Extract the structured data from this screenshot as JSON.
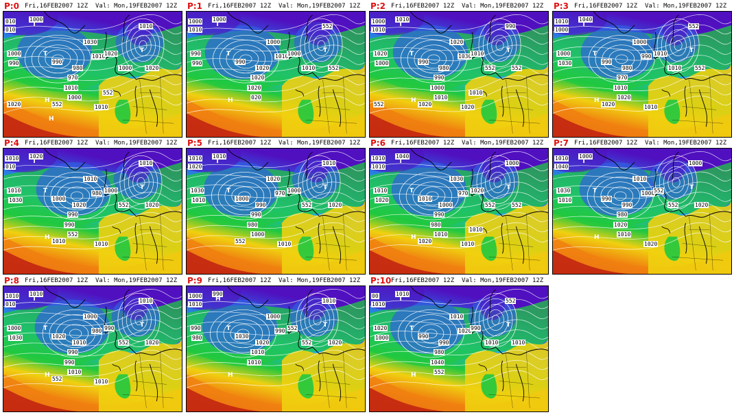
{
  "page": {
    "colors": {
      "background": "#ffffff",
      "panel_id": "#e01010",
      "cold": "#5010c0",
      "blue": "#3060e0",
      "cyan": "#20b0e0",
      "green": "#20c840",
      "yellow": "#f0d010",
      "orange": "#f08010",
      "red": "#c02010",
      "isobar": "#ffffff",
      "coast": "#000000"
    },
    "panels": [
      {
        "id": "P:0",
        "run": "Fri,16FEB2007 12Z",
        "valid": "Val: Mon,19FEB2007 12Z",
        "labels": [
          "010",
          "010",
          "1000",
          "1000",
          "990",
          "990",
          "980",
          "970",
          "1010",
          "1010",
          "1030",
          "1020",
          "1010",
          "1000",
          "1020",
          "1000",
          "1010",
          "552",
          "552",
          "1020"
        ],
        "centers": [
          "T",
          "T",
          "T",
          "H",
          "H"
        ]
      },
      {
        "id": "P:1",
        "run": "Fri,16FEB2007 12Z",
        "valid": "Val: Mon,19FEB2007 12Z",
        "labels": [
          "1000",
          "1010",
          "1000",
          "990",
          "990",
          "990",
          "1020",
          "1020",
          "1020",
          "1010",
          "1000",
          "1000",
          "552",
          "1010",
          "552",
          "020"
        ],
        "centers": [
          "T",
          "T",
          "T",
          "H"
        ]
      },
      {
        "id": "P:2",
        "run": "Fri,16FEB2007 12Z",
        "valid": "Val: Mon,19FEB2007 12Z",
        "labels": [
          "1000",
          "1010",
          "1010",
          "1020",
          "1000",
          "990",
          "980",
          "990",
          "1000",
          "1030",
          "1020",
          "1010",
          "990",
          "552",
          "552",
          "1010",
          "1020",
          "1020",
          "1010",
          "552"
        ],
        "centers": [
          "T",
          "T",
          "T",
          "H"
        ]
      },
      {
        "id": "P:3",
        "run": "Fri,16FEB2007 12Z",
        "valid": "Val: Mon,19FEB2007 12Z",
        "labels": [
          "1010",
          "1000",
          "1040",
          "1000",
          "1030",
          "990",
          "980",
          "970",
          "1010",
          "990",
          "1000",
          "1010",
          "552",
          "1010",
          "552",
          "1020",
          "1010",
          "1020"
        ],
        "centers": [
          "T",
          "T",
          "T",
          "H"
        ]
      },
      {
        "id": "P:4",
        "run": "Fri,16FEB2007 12Z",
        "valid": "Val: Mon,19FEB2007 12Z",
        "labels": [
          "1010",
          "010",
          "1020",
          "1010",
          "1030",
          "1000",
          "1020",
          "990",
          "990",
          "980",
          "1010",
          "1000",
          "1010",
          "552",
          "1020",
          "552",
          "1010",
          "1010"
        ],
        "centers": [
          "T",
          "T",
          "T",
          "H"
        ]
      },
      {
        "id": "P:5",
        "run": "Fri,16FEB2007 12Z",
        "valid": "Val: Mon,19FEB2007 12Z",
        "labels": [
          "1010",
          "1020",
          "1010",
          "1030",
          "1010",
          "1000",
          "990",
          "990",
          "980",
          "970",
          "1020",
          "1000",
          "1010",
          "552",
          "1020",
          "1000",
          "1010",
          "552"
        ],
        "centers": [
          "T",
          "T",
          "T"
        ]
      },
      {
        "id": "P:6",
        "run": "Fri,16FEB2007 12Z",
        "valid": "Val: Mon,19FEB2007 12Z",
        "labels": [
          "1010",
          "1010",
          "1040",
          "1010",
          "1020",
          "1010",
          "1000",
          "990",
          "980",
          "970",
          "1030",
          "1020",
          "1000",
          "552",
          "552",
          "1010",
          "1010",
          "1020",
          "1010"
        ],
        "centers": [
          "T",
          "T",
          "T",
          "H"
        ]
      },
      {
        "id": "P:7",
        "run": "Fri,16FEB2007 12Z",
        "valid": "Val: Mon,19FEB2007 12Z",
        "labels": [
          "1010",
          "1040",
          "1000",
          "1030",
          "1010",
          "990",
          "990",
          "980",
          "1020",
          "1000",
          "1010",
          "552",
          "1000",
          "552",
          "1020",
          "1010",
          "1020"
        ],
        "centers": [
          "T",
          "T",
          "T",
          "H"
        ]
      },
      {
        "id": "P:8",
        "run": "Fri,16FEB2007 12Z",
        "valid": "Val: Mon,19FEB2007 12Z",
        "labels": [
          "1010",
          "010",
          "1010",
          "1000",
          "1030",
          "1020",
          "1010",
          "990",
          "990",
          "980",
          "1000",
          "990",
          "1010",
          "552",
          "1020",
          "1010",
          "1010",
          "552"
        ],
        "centers": [
          "T",
          "T",
          "T",
          "H"
        ]
      },
      {
        "id": "P:9",
        "run": "Fri,16FEB2007 12Z",
        "valid": "Val: Mon,19FEB2007 12Z",
        "labels": [
          "1000",
          "1010",
          "990",
          "990",
          "980",
          "1030",
          "1020",
          "1010",
          "1010",
          "990",
          "1000",
          "552",
          "1010",
          "552",
          "1020"
        ],
        "centers": [
          "T",
          "T",
          "H",
          "H"
        ]
      },
      {
        "id": "P:10",
        "run": "Fri,16FEB2007 12Z",
        "valid": "Val: Mon,19FEB2007 12Z",
        "labels": [
          "00",
          "1010",
          "1010",
          "1020",
          "1000",
          "990",
          "990",
          "980",
          "1040",
          "1020",
          "1010",
          "990",
          "552",
          "1010",
          "1010",
          "552"
        ],
        "centers": [
          "T",
          "T",
          "T",
          "H"
        ]
      }
    ]
  }
}
